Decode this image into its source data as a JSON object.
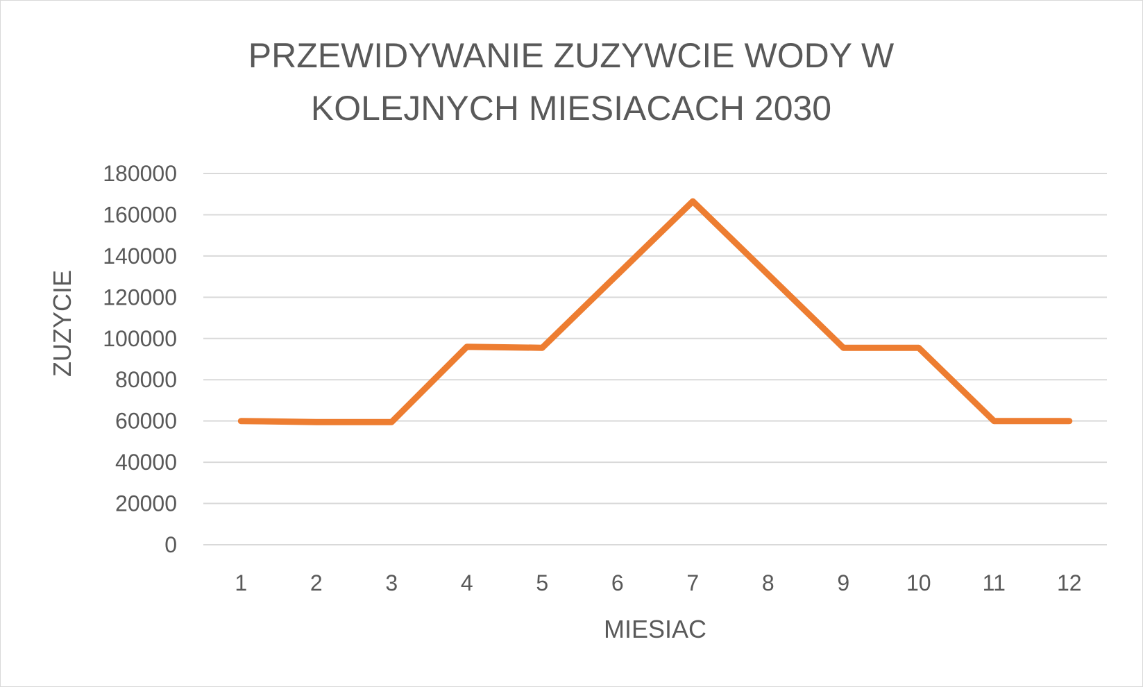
{
  "chart_data": {
    "type": "line",
    "title_lines": [
      "PRZEWIDYWANIE ZUZYWCIE WODY W",
      "KOLEJNYCH MIESIACACH 2030"
    ],
    "xlabel": "MIESIAC",
    "ylabel": "ZUZYCIE",
    "categories": [
      "1",
      "2",
      "3",
      "4",
      "5",
      "6",
      "7",
      "8",
      "9",
      "10",
      "11",
      "12"
    ],
    "y_ticks": [
      "0",
      "20000",
      "40000",
      "60000",
      "80000",
      "100000",
      "120000",
      "140000",
      "160000",
      "180000"
    ],
    "ylim": [
      0,
      180000
    ],
    "grid": "horizontal",
    "legend": "none",
    "series": [
      {
        "color": "#ED7D31",
        "values": [
          60000,
          59500,
          59500,
          96000,
          95500,
          131000,
          166500,
          131000,
          95500,
          95500,
          60000,
          60000
        ]
      }
    ]
  }
}
